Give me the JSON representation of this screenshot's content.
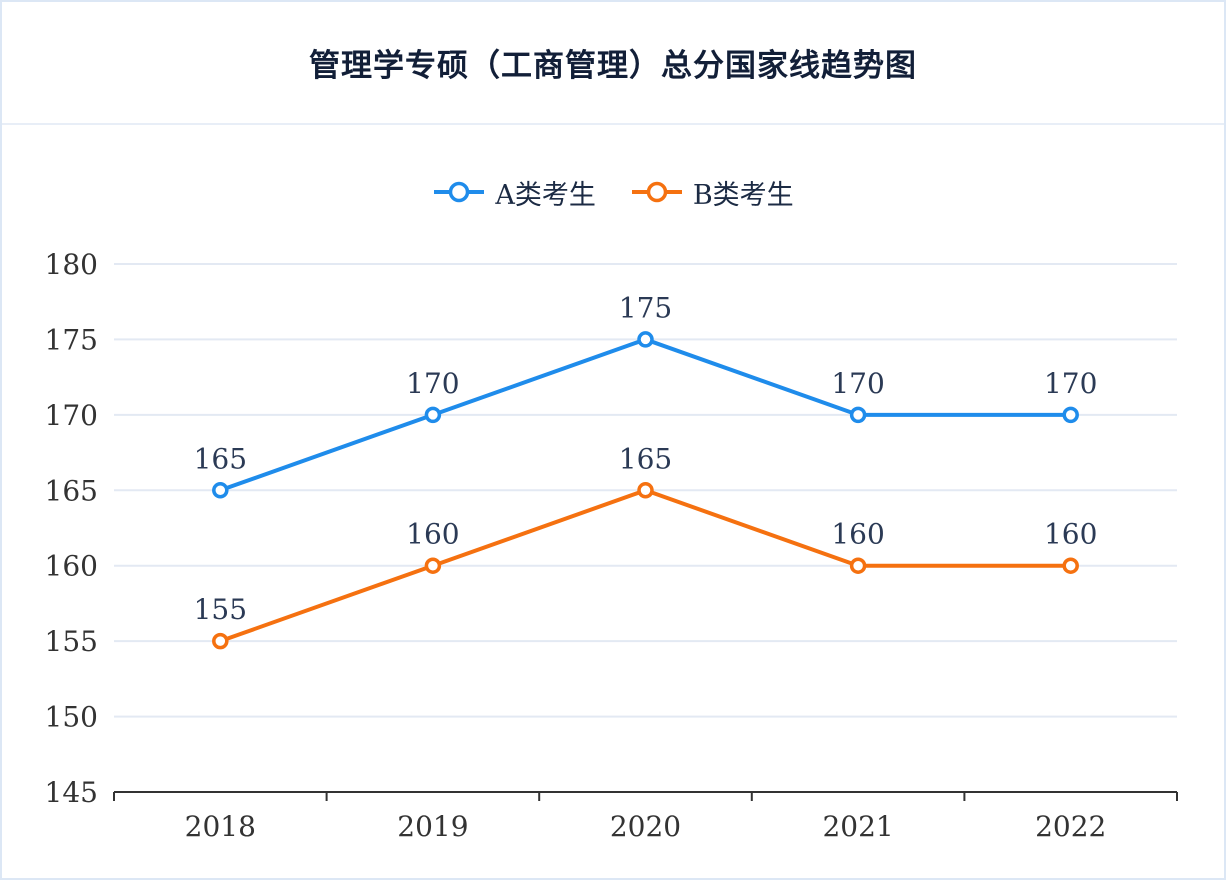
{
  "title": "管理学专硕（工商管理）总分国家线趋势图",
  "colors": {
    "series_a": "#1f8ceb",
    "series_b": "#f57110",
    "grid": "#e3e9f3",
    "axis": "#333333",
    "tick_text": "#333333",
    "data_label": "#2b3a55",
    "title_text": "#121f38",
    "border": "#dce7f5",
    "marker_fill": "#ffffff"
  },
  "legend": {
    "items": [
      {
        "label": "A类考生"
      },
      {
        "label": "B类考生"
      }
    ]
  },
  "chart_data": {
    "type": "line",
    "title": "管理学专硕（工商管理）总分国家线趋势图",
    "categories": [
      "2018",
      "2019",
      "2020",
      "2021",
      "2022"
    ],
    "series": [
      {
        "name": "A类考生",
        "color": "#1f8ceb",
        "values": [
          165,
          170,
          175,
          170,
          170
        ]
      },
      {
        "name": "B类考生",
        "color": "#f57110",
        "values": [
          155,
          160,
          165,
          160,
          160
        ]
      }
    ],
    "xlabel": "",
    "ylabel": "",
    "ylim": [
      145,
      180
    ],
    "ytick_step": 5,
    "yticks": [
      145,
      150,
      155,
      160,
      165,
      170,
      175,
      180
    ],
    "grid": true,
    "legend_position": "top",
    "data_labels": true
  }
}
